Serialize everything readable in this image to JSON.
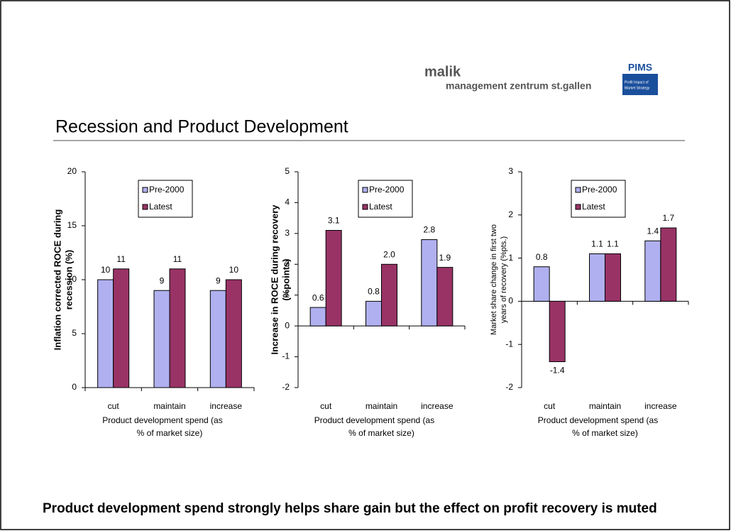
{
  "header": {
    "brand": "malik",
    "tagline": "management zentrum st.gallen",
    "logo": "PIMS",
    "logo_sub": [
      "Profit Impact of",
      "Market Strategy"
    ]
  },
  "title": "Recession and Product Development",
  "footer": "Product development spend strongly helps share gain but the effect on profit recovery is muted",
  "chart_data": [
    {
      "type": "bar",
      "ylabel": [
        "Inflation corrected ROCE during",
        "recession (%)"
      ],
      "xlabel": [
        "Product development spend (as",
        "% of market size)"
      ],
      "categories": [
        "cut",
        "maintain",
        "increase"
      ],
      "series": [
        {
          "name": "Pre-2000",
          "color": "#b0b0f0",
          "values": [
            10,
            9,
            9
          ]
        },
        {
          "name": "Latest",
          "color": "#993366",
          "values": [
            11,
            11,
            10
          ]
        }
      ],
      "ylim": [
        0,
        20
      ],
      "yticks": [
        0,
        5,
        10,
        15,
        20
      ]
    },
    {
      "type": "bar",
      "ylabel": [
        "Increase in ROCE during recovery",
        "(%points)"
      ],
      "xlabel": [
        "Product development spend (as",
        "% of market size)"
      ],
      "categories": [
        "cut",
        "maintain",
        "increase"
      ],
      "series": [
        {
          "name": "Pre-2000",
          "color": "#b0b0f0",
          "values": [
            0.6,
            0.8,
            2.8
          ],
          "value_labels": [
            "0.6",
            "0.8",
            "2.8"
          ]
        },
        {
          "name": "Latest",
          "color": "#993366",
          "values": [
            3.1,
            2.0,
            1.9
          ],
          "value_labels": [
            "3.1",
            "2.0",
            "1.9"
          ]
        }
      ],
      "ylim": [
        -2,
        5
      ],
      "yticks": [
        -2,
        -1,
        0,
        1,
        2,
        3,
        4,
        5
      ]
    },
    {
      "type": "bar",
      "ylabel": [
        "Market share change in first two",
        "years of recovery (%pts.)"
      ],
      "xlabel": [
        "Product development spend (as",
        "% of market size)"
      ],
      "categories": [
        "cut",
        "maintain",
        "increase"
      ],
      "series": [
        {
          "name": "Pre-2000",
          "color": "#b0b0f0",
          "values": [
            0.8,
            1.1,
            1.4
          ],
          "value_labels": [
            "0.8",
            "1.1",
            "1.4"
          ]
        },
        {
          "name": "Latest",
          "color": "#993366",
          "values": [
            -1.4,
            1.1,
            1.7
          ],
          "value_labels": [
            "-1.4",
            "1.1",
            "1.7"
          ]
        }
      ],
      "ylim": [
        -2,
        3
      ],
      "yticks": [
        -2,
        -1,
        0,
        1,
        2,
        3
      ]
    }
  ]
}
